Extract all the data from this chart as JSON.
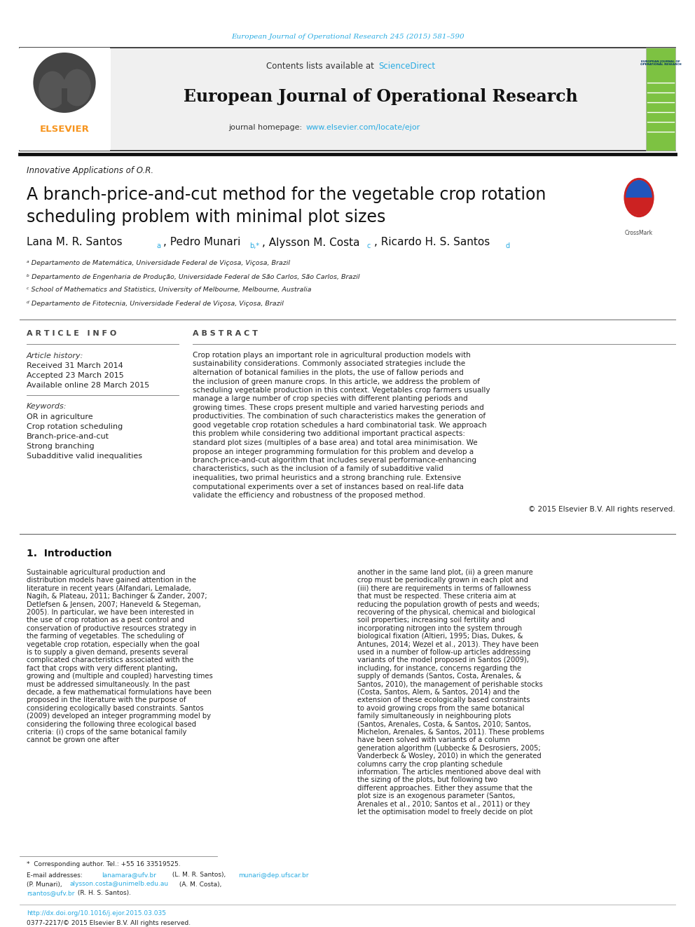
{
  "page_width": 9.92,
  "page_height": 13.23,
  "background_color": "#ffffff",
  "top_citation": "European Journal of Operational Research 245 (2015) 581–590",
  "top_citation_color": "#29abe2",
  "header_bg_color": "#f0f0f0",
  "elsevier_orange": "#f7941d",
  "elsevier_text": "ELSEVIER",
  "contents_text": "Contents lists available at ",
  "sciencedirect_text": "ScienceDirect",
  "sciencedirect_color": "#29abe2",
  "journal_title": "European Journal of Operational Research",
  "journal_homepage_label": "journal homepage: ",
  "journal_url": "www.elsevier.com/locate/ejor",
  "journal_url_color": "#29abe2",
  "section_label": "Innovative Applications of O.R.",
  "paper_title_line1": "A branch-price-and-cut method for the vegetable crop rotation",
  "paper_title_line2": "scheduling problem with minimal plot sizes",
  "affil_a": "ᵃ Departamento de Matemática, Universidade Federal de Viçosa, Viçosa, Brazil",
  "affil_b": "ᵇ Departamento de Engenharia de Produção, Universidade Federal de São Carlos, São Carlos, Brazil",
  "affil_c": "ᶜ School of Mathematics and Statistics, University of Melbourne, Melbourne, Australia",
  "affil_d": "ᵈ Departamento de Fitotecnia, Universidade Federal de Viçosa, Viçosa, Brazil",
  "article_info_title": "A R T I C L E   I N F O",
  "abstract_title": "A B S T R A C T",
  "article_history_label": "Article history:",
  "received": "Received 31 March 2014",
  "accepted": "Accepted 23 March 2015",
  "available": "Available online 28 March 2015",
  "keywords_label": "Keywords:",
  "keywords": [
    "OR in agriculture",
    "Crop rotation scheduling",
    "Branch-price-and-cut",
    "Strong branching",
    "Subadditive valid inequalities"
  ],
  "abstract_text": "Crop rotation plays an important role in agricultural production models with sustainability considerations. Commonly associated strategies include the alternation of botanical families in the plots, the use of fallow periods and the inclusion of green manure crops. In this article, we address the problem of scheduling vegetable production in this context. Vegetables crop farmers usually manage a large number of crop species with different planting periods and growing times. These crops present multiple and varied harvesting periods and productivities. The combination of such characteristics makes the generation of good vegetable crop rotation schedules a hard combinatorial task. We approach this problem while considering two additional important practical aspects: standard plot sizes (multiples of a base area) and total area minimisation. We propose an integer programming formulation for this problem and develop a branch-price-and-cut algorithm that includes several performance-enhancing characteristics, such as the inclusion of a family of subadditive valid inequalities, two primal heuristics and a strong branching rule. Extensive computational experiments over a set of instances based on real-life data validate the efficiency and robustness of the proposed method.",
  "copyright": "© 2015 Elsevier B.V. All rights reserved.",
  "intro_title": "1.  Introduction",
  "intro_col1": "Sustainable agricultural production and distribution models have gained attention in the literature in recent years (Alfandari, Lemalade, Nagih, & Plateau, 2011; Bachinger & Zander, 2007; Detlefsen & Jensen, 2007; Haneveld & Stegeman, 2005). In particular, we have been interested in the use of crop rotation as a pest control and conservation of productive resources strategy in the farming of vegetables. The scheduling of vegetable crop rotation, especially when the goal is to supply a given demand, presents several complicated characteristics associated with the fact that crops with very different planting, growing and (multiple and coupled) harvesting times must be addressed simultaneously.\n   In the past decade, a few mathematical formulations have been proposed in the literature with the purpose of considering ecologically based constraints. Santos (2009) developed an integer programming model by considering the following three ecological based criteria: (i) crops of the same botanical family cannot be grown one after",
  "intro_col2": "another in the same land plot, (ii) a green manure crop must be periodically grown in each plot and (iii) there are requirements in terms of fallowness that must be respected. These criteria aim at reducing the population growth of pests and weeds; recovering of the physical, chemical and biological soil properties; increasing soil fertility and incorporating nitrogen into the system through biological fixation (Altieri, 1995; Dias, Dukes, & Antunes, 2014; Wezel et al., 2013). They have been used in a number of follow-up articles addressing variants of the model proposed in Santos (2009), including, for instance, concerns regarding the supply of demands (Santos, Costa, Arenales, & Santos, 2010), the management of perishable stocks (Costa, Santos, Alem, & Santos, 2014) and the extension of these ecologically based constraints to avoid growing crops from the same botanical family simultaneously in neighbouring plots (Santos, Arenales, Costa, & Santos, 2010; Santos, Michelon, Arenales, & Santos, 2011). These problems have been solved with variants of a column generation algorithm (Lubbecke & Desrosiers, 2005; Vanderbeck & Wosley, 2010) in which the generated columns carry the crop planting schedule information.\n   The articles mentioned above deal with the sizing of the plots, but following two different approaches. Either they assume that the plot size is an exogenous parameter (Santos, Arenales et al., 2010; Santos et al., 2011) or they let the optimisation model to freely decide on plot",
  "footnote_corresp": "*  Corresponding author. Tel.: +55 16 33519525.",
  "footnote_doi": "http://dx.doi.org/10.1016/j.ejor.2015.03.035",
  "footnote_issn": "0377-2217/© 2015 Elsevier B.V. All rights reserved.",
  "link_color": "#29abe2"
}
